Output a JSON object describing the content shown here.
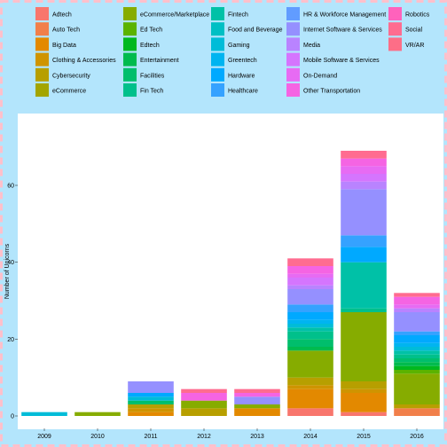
{
  "colors": {
    "frame_bg": "#b3e5fc",
    "frame_border": "#ffc0cb",
    "panel_bg": "#ffffff",
    "text": "#000000"
  },
  "legend": [
    {
      "label": "Adtech",
      "color": "#f8766d"
    },
    {
      "label": "Auto Tech",
      "color": "#f17f4a"
    },
    {
      "label": "Big Data",
      "color": "#e38900"
    },
    {
      "label": "Clothing & Accessories",
      "color": "#cf9400"
    },
    {
      "label": "Cybersecurity",
      "color": "#b79f00"
    },
    {
      "label": "eCommerce",
      "color": "#a3a500"
    },
    {
      "label": "eCommerce/Marketplace",
      "color": "#86ac00"
    },
    {
      "label": "Ed Tech",
      "color": "#5bb300"
    },
    {
      "label": "Edtech",
      "color": "#00b81f"
    },
    {
      "label": "Entertainment",
      "color": "#00bb4e"
    },
    {
      "label": "Facilities",
      "color": "#00be6c"
    },
    {
      "label": "Fin Tech",
      "color": "#00c08b"
    },
    {
      "label": "Fintech",
      "color": "#00c1a7"
    },
    {
      "label": "Food and Beverage",
      "color": "#00bfc4"
    },
    {
      "label": "Gaming",
      "color": "#00bcd8"
    },
    {
      "label": "Greentech",
      "color": "#00b4f0"
    },
    {
      "label": "Hardware",
      "color": "#00a9ff"
    },
    {
      "label": "Healthcare",
      "color": "#35a2ff"
    },
    {
      "label": "HR & Workforce Management",
      "color": "#619cff"
    },
    {
      "label": "Internet Software & Services",
      "color": "#9590ff"
    },
    {
      "label": "Media",
      "color": "#b983ff"
    },
    {
      "label": "Mobile Software & Services",
      "color": "#d575fe"
    },
    {
      "label": "On-Demand",
      "color": "#e76bf3"
    },
    {
      "label": "Other Transportation",
      "color": "#f564e3"
    },
    {
      "label": "Robotics",
      "color": "#ff62bc"
    },
    {
      "label": "Social",
      "color": "#ff6c90"
    },
    {
      "label": "VR/AR",
      "color": "#fd6e87"
    }
  ],
  "chart_data": {
    "type": "bar",
    "stacked": true,
    "title": "",
    "xlabel": "",
    "ylabel": "Number of Unicorns",
    "ylim": [
      0,
      76
    ],
    "yticks": [
      0,
      20,
      40,
      60
    ],
    "grid": false,
    "legend_position": "top",
    "categories": [
      "2009",
      "2010",
      "2011",
      "2012",
      "2013",
      "2014",
      "2015",
      "2016"
    ],
    "series": [
      {
        "name": "Adtech",
        "values": [
          0,
          0,
          0,
          0,
          0,
          2,
          1,
          0
        ]
      },
      {
        "name": "Auto Tech",
        "values": [
          0,
          0,
          0,
          0,
          0,
          0,
          0,
          2
        ]
      },
      {
        "name": "Big Data",
        "values": [
          0,
          0,
          1,
          0,
          2,
          5,
          5,
          0
        ]
      },
      {
        "name": "Clothing & Accessories",
        "values": [
          0,
          0,
          1,
          0,
          0,
          1,
          1,
          0
        ]
      },
      {
        "name": "Cybersecurity",
        "values": [
          0,
          0,
          1,
          2,
          0,
          2,
          2,
          1
        ]
      },
      {
        "name": "eCommerce",
        "values": [
          0,
          0,
          0,
          0,
          0,
          0,
          0,
          0
        ]
      },
      {
        "name": "eCommerce/Marketplace",
        "values": [
          0,
          1,
          0,
          2,
          1,
          7,
          18,
          8
        ]
      },
      {
        "name": "Ed Tech",
        "values": [
          0,
          0,
          0,
          0,
          0,
          0,
          0,
          1
        ]
      },
      {
        "name": "Edtech",
        "values": [
          0,
          0,
          0,
          0,
          0,
          0,
          0,
          1
        ]
      },
      {
        "name": "Entertainment",
        "values": [
          0,
          0,
          0,
          0,
          0,
          1,
          0,
          1
        ]
      },
      {
        "name": "Facilities",
        "values": [
          0,
          0,
          1,
          0,
          0,
          2,
          0,
          1
        ]
      },
      {
        "name": "Fin Tech",
        "values": [
          0,
          0,
          0,
          0,
          0,
          2,
          1,
          1
        ]
      },
      {
        "name": "Fintech",
        "values": [
          0,
          0,
          0,
          0,
          0,
          1,
          12,
          1
        ]
      },
      {
        "name": "Food and Beverage",
        "values": [
          0,
          0,
          0,
          0,
          0,
          0,
          0,
          0
        ]
      },
      {
        "name": "Gaming",
        "values": [
          1,
          0,
          1,
          0,
          0,
          1,
          0,
          1
        ]
      },
      {
        "name": "Greentech",
        "values": [
          0,
          0,
          0,
          0,
          0,
          1,
          0,
          1
        ]
      },
      {
        "name": "Hardware",
        "values": [
          0,
          0,
          1,
          0,
          0,
          2,
          4,
          2
        ]
      },
      {
        "name": "Healthcare",
        "values": [
          0,
          0,
          0,
          0,
          0,
          2,
          3,
          1
        ]
      },
      {
        "name": "HR & Workforce Management",
        "values": [
          0,
          0,
          0,
          0,
          0,
          0,
          0,
          0
        ]
      },
      {
        "name": "Internet Software & Services",
        "values": [
          0,
          0,
          3,
          0,
          2,
          4,
          12,
          5
        ]
      },
      {
        "name": "Media",
        "values": [
          0,
          0,
          0,
          0,
          0,
          1,
          2,
          1
        ]
      },
      {
        "name": "Mobile Software & Services",
        "values": [
          0,
          0,
          0,
          0,
          0,
          2,
          2,
          0
        ]
      },
      {
        "name": "On-Demand",
        "values": [
          0,
          0,
          0,
          0,
          0,
          1,
          2,
          1
        ]
      },
      {
        "name": "Other Transportation",
        "values": [
          0,
          0,
          0,
          2,
          1,
          2,
          2,
          2
        ]
      },
      {
        "name": "Robotics",
        "values": [
          0,
          0,
          0,
          0,
          0,
          0,
          0,
          0
        ]
      },
      {
        "name": "Social",
        "values": [
          0,
          0,
          0,
          1,
          1,
          2,
          2,
          1
        ]
      },
      {
        "name": "VR/AR",
        "values": [
          0,
          0,
          0,
          0,
          0,
          0,
          0,
          0
        ]
      }
    ]
  }
}
